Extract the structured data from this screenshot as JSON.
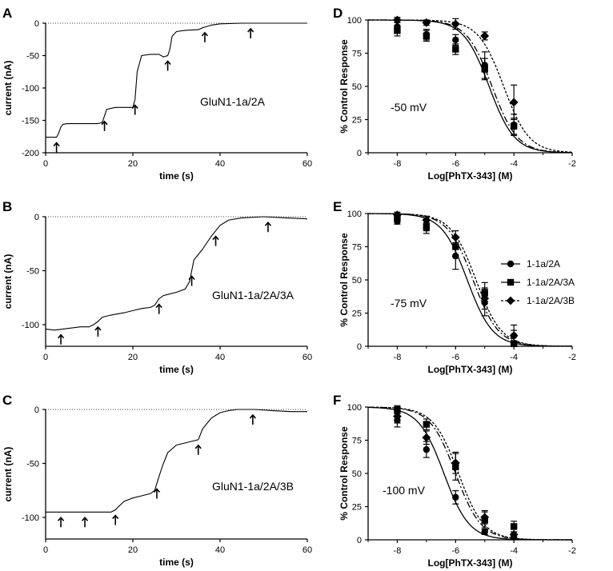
{
  "chart_data": [
    {
      "panel": "A",
      "type": "line",
      "xlabel": "time (s)",
      "ylabel": "current (nA)",
      "xlim": [
        0,
        60
      ],
      "ylim": [
        -200,
        0
      ],
      "xticks": [
        "0",
        "20",
        "40",
        "60"
      ],
      "yticks": [
        "-200",
        "-150",
        "-100",
        "-50",
        "0"
      ],
      "label": "GluN1-1a/2A",
      "dotted_zero_line": true,
      "trace": {
        "x": [
          0,
          2.5,
          3,
          3.5,
          4,
          5,
          8,
          12,
          13,
          14,
          16,
          19,
          20,
          20.5,
          21,
          22,
          24,
          26,
          27,
          28,
          28.5,
          29,
          30,
          32,
          35,
          36,
          38,
          40,
          45,
          50,
          55,
          60
        ],
        "y": [
          -176,
          -176,
          -170,
          -160,
          -156,
          -155,
          -155,
          -155,
          -153,
          -133,
          -130,
          -130,
          -130,
          -118,
          -75,
          -50,
          -48,
          -48,
          -52,
          -50,
          -40,
          -20,
          -13,
          -11,
          -10,
          -7,
          -3,
          -1,
          0,
          0,
          0,
          0
        ]
      },
      "arrows_x": [
        2.5,
        13.5,
        20.5,
        28,
        36.5,
        47
      ]
    },
    {
      "panel": "B",
      "type": "line",
      "xlabel": "time (s)",
      "ylabel": "current (nA)",
      "xlim": [
        0,
        60
      ],
      "ylim": [
        -120,
        0
      ],
      "xticks": [
        "0",
        "20",
        "40",
        "60"
      ],
      "yticks": [
        "-100",
        "-50",
        "0"
      ],
      "label": "GluN1-1a/2A/3A",
      "dotted_zero_line": true,
      "trace": {
        "x": [
          0,
          2,
          4,
          6,
          8,
          10,
          11,
          12,
          13,
          15,
          18,
          20,
          22,
          24,
          25,
          26,
          27,
          28,
          30,
          32,
          33,
          34,
          36,
          38,
          40,
          42,
          45,
          50,
          55,
          60
        ],
        "y": [
          -104,
          -105,
          -104,
          -103,
          -102,
          -102,
          -100,
          -97,
          -93,
          -91,
          -89,
          -87,
          -85,
          -84,
          -82,
          -76,
          -73,
          -72,
          -70,
          -67,
          -60,
          -40,
          -30,
          -18,
          -8,
          -3,
          -1,
          0,
          -1,
          -2
        ]
      },
      "arrows_x": [
        3.5,
        12,
        26,
        33.5,
        39,
        51
      ]
    },
    {
      "panel": "C",
      "type": "line",
      "xlabel": "time (s)",
      "ylabel": "current (nA)",
      "xlim": [
        0,
        60
      ],
      "ylim": [
        -120,
        0
      ],
      "xticks": [
        "0",
        "20",
        "40",
        "60"
      ],
      "yticks": [
        "-100",
        "-50",
        "0"
      ],
      "label": "GluN1-1a/2A/3B",
      "dotted_zero_line": true,
      "trace": {
        "x": [
          0,
          5,
          10,
          15,
          16,
          17,
          18,
          20,
          22,
          24,
          25,
          26,
          27,
          28,
          30,
          32,
          33,
          34,
          35,
          36,
          38,
          40,
          42,
          44,
          48,
          52,
          56,
          60
        ],
        "y": [
          -95,
          -95,
          -95,
          -95,
          -93,
          -89,
          -85,
          -82,
          -80,
          -78,
          -75,
          -62,
          -50,
          -40,
          -33,
          -31,
          -30,
          -29,
          -28,
          -18,
          -8,
          -3,
          -1,
          0,
          0,
          -1,
          -2,
          -2
        ]
      },
      "arrows_x": [
        3.5,
        9,
        16,
        25.5,
        35,
        47.5
      ]
    },
    {
      "panel": "D",
      "type": "scatter",
      "xlabel": "Log[PhTX-343] (M)",
      "ylabel": "% Control Response",
      "xlim": [
        -9,
        -2
      ],
      "ylim": [
        0,
        100
      ],
      "xticks": [
        "-8",
        "-6",
        "-4",
        "-2"
      ],
      "yticks": [
        "0",
        "25",
        "50",
        "75",
        "100"
      ],
      "label": "-50 mV",
      "series": [
        {
          "marker": "circle",
          "line": "solid",
          "x": [
            -8,
            -7,
            -6,
            -5,
            -4
          ],
          "y": [
            95,
            89,
            85,
            66,
            21
          ],
          "err": [
            3,
            4,
            4,
            10,
            8
          ],
          "ic50_log": -4.85
        },
        {
          "marker": "square",
          "line": "dashdot",
          "x": [
            -8,
            -7,
            -6,
            -5,
            -4
          ],
          "y": [
            92,
            88,
            78,
            63,
            20
          ],
          "err": [
            4,
            4,
            4,
            8,
            6
          ],
          "ic50_log": -4.75
        },
        {
          "marker": "diamond",
          "line": "dotted",
          "x": [
            -8,
            -7,
            -6,
            -5,
            -4
          ],
          "y": [
            100,
            98,
            97,
            88,
            38
          ],
          "err": [
            2,
            2,
            4,
            3,
            13
          ],
          "ic50_log": -4.35
        }
      ]
    },
    {
      "panel": "E",
      "type": "scatter",
      "xlabel": "Log[PhTX-343] (M)",
      "ylabel": "% Control Response",
      "xlim": [
        -9,
        -2
      ],
      "ylim": [
        0,
        100
      ],
      "xticks": [
        "-8",
        "-6",
        "-4",
        "-2"
      ],
      "yticks": [
        "0",
        "25",
        "50",
        "75",
        "100"
      ],
      "label": "-75 mV",
      "legend": [
        "1-1a/2A",
        "1-1a/2A/3A",
        "1-1a/2A/3B"
      ],
      "series": [
        {
          "marker": "circle",
          "line": "solid",
          "x": [
            -8,
            -7,
            -6,
            -5,
            -4
          ],
          "y": [
            94,
            89,
            68,
            33,
            8
          ],
          "err": [
            2,
            4,
            10,
            10,
            8
          ],
          "ic50_log": -5.6
        },
        {
          "marker": "square",
          "line": "dashdot",
          "x": [
            -8,
            -7,
            -6,
            -5,
            -4
          ],
          "y": [
            97,
            90,
            75,
            40,
            2
          ],
          "err": [
            2,
            3,
            8,
            8,
            2
          ],
          "ic50_log": -5.4
        },
        {
          "marker": "diamond",
          "line": "dotted",
          "x": [
            -8,
            -7,
            -6,
            -5,
            -4
          ],
          "y": [
            99,
            95,
            82,
            36,
            8
          ],
          "err": [
            2,
            3,
            5,
            8,
            4
          ],
          "ic50_log": -5.3
        }
      ]
    },
    {
      "panel": "F",
      "type": "scatter",
      "xlabel": "Log[PhTX-343] (M)",
      "ylabel": "% Control Response",
      "xlim": [
        -9,
        -2
      ],
      "ylim": [
        0,
        100
      ],
      "xticks": [
        "-8",
        "-6",
        "-4",
        "-2"
      ],
      "yticks": [
        "0",
        "25",
        "50",
        "75",
        "100"
      ],
      "label": "-100 mV",
      "series": [
        {
          "marker": "circle",
          "line": "solid",
          "x": [
            -8,
            -7,
            -6,
            -5,
            -4
          ],
          "y": [
            90,
            68,
            32,
            6,
            2
          ],
          "err": [
            5,
            6,
            5,
            2,
            2
          ],
          "ic50_log": -6.4
        },
        {
          "marker": "square",
          "line": "dashdot",
          "x": [
            -8,
            -7,
            -6,
            -5,
            -4
          ],
          "y": [
            98,
            87,
            55,
            15,
            10
          ],
          "err": [
            3,
            4,
            10,
            6,
            4
          ],
          "ic50_log": -6.0
        },
        {
          "marker": "diamond",
          "line": "dotted",
          "x": [
            -8,
            -7,
            -6,
            -5,
            -4
          ],
          "y": [
            93,
            77,
            58,
            17,
            4
          ],
          "err": [
            5,
            5,
            8,
            5,
            2
          ],
          "ic50_log": -5.9
        }
      ]
    }
  ]
}
